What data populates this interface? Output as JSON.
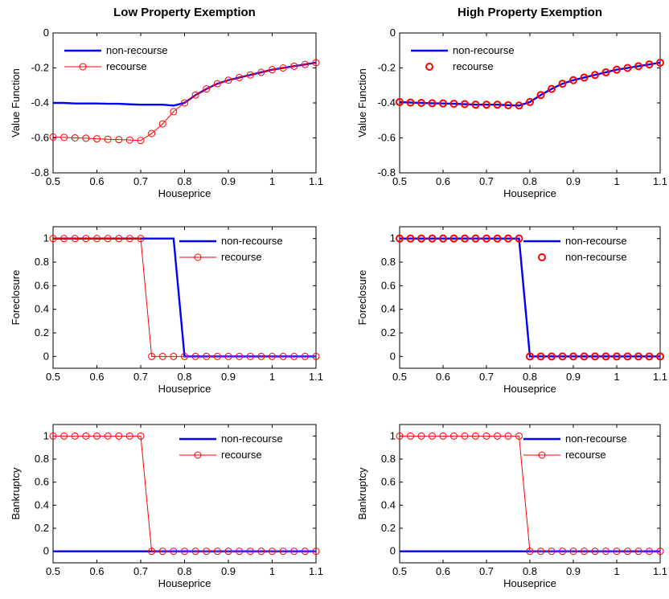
{
  "chart_data": [
    {
      "type": "line",
      "panel": "r1c1",
      "title": "Low Property Exemption",
      "xlabel": "Houseprice",
      "ylabel": "Value Function",
      "xlim": [
        0.5,
        1.1
      ],
      "ylim": [
        -0.8,
        0
      ],
      "xticks": [
        "0.5",
        "0.6",
        "0.7",
        "0.8",
        "0.9",
        "1",
        "1.1"
      ],
      "yticks": [
        "-0.8",
        "-0.6",
        "-0.4",
        "-0.2",
        "0"
      ],
      "legend_position": "top-left",
      "series": [
        {
          "name": "non-recourse",
          "color": "#0000ff",
          "marker": "none",
          "x": [
            0.5,
            0.525,
            0.55,
            0.575,
            0.6,
            0.625,
            0.65,
            0.675,
            0.7,
            0.725,
            0.75,
            0.775,
            0.8,
            0.825,
            0.85,
            0.875,
            0.9,
            0.925,
            0.95,
            0.975,
            1.0,
            1.025,
            1.05,
            1.075,
            1.1
          ],
          "values": [
            -0.4,
            -0.4,
            -0.403,
            -0.403,
            -0.403,
            -0.405,
            -0.405,
            -0.408,
            -0.41,
            -0.41,
            -0.41,
            -0.415,
            -0.4,
            -0.355,
            -0.32,
            -0.29,
            -0.27,
            -0.255,
            -0.24,
            -0.225,
            -0.21,
            -0.2,
            -0.19,
            -0.18,
            -0.17
          ]
        },
        {
          "name": "recourse",
          "color": "#ff0000",
          "marker": "circle",
          "x": [
            0.5,
            0.525,
            0.55,
            0.575,
            0.6,
            0.625,
            0.65,
            0.675,
            0.7,
            0.725,
            0.75,
            0.775,
            0.8,
            0.825,
            0.85,
            0.875,
            0.9,
            0.925,
            0.95,
            0.975,
            1.0,
            1.025,
            1.05,
            1.075,
            1.1
          ],
          "values": [
            -0.595,
            -0.597,
            -0.6,
            -0.602,
            -0.605,
            -0.608,
            -0.61,
            -0.612,
            -0.615,
            -0.575,
            -0.52,
            -0.45,
            -0.4,
            -0.355,
            -0.32,
            -0.29,
            -0.27,
            -0.255,
            -0.24,
            -0.225,
            -0.21,
            -0.2,
            -0.19,
            -0.18,
            -0.17
          ]
        }
      ]
    },
    {
      "type": "line",
      "panel": "r1c2",
      "title": "High Property Exemption",
      "xlabel": "Houseprice",
      "ylabel": "Value Function",
      "xlim": [
        0.5,
        1.1
      ],
      "ylim": [
        -0.8,
        0
      ],
      "xticks": [
        "0.5",
        "0.6",
        "0.7",
        "0.8",
        "0.9",
        "1",
        "1.1"
      ],
      "yticks": [
        "-0.8",
        "-0.6",
        "-0.4",
        "-0.2",
        "0"
      ],
      "legend_position": "top-left",
      "series": [
        {
          "name": "non-recourse",
          "color": "#0000ff",
          "marker": "none",
          "x": [
            0.5,
            0.525,
            0.55,
            0.575,
            0.6,
            0.625,
            0.65,
            0.675,
            0.7,
            0.725,
            0.75,
            0.775,
            0.8,
            0.825,
            0.85,
            0.875,
            0.9,
            0.925,
            0.95,
            0.975,
            1.0,
            1.025,
            1.05,
            1.075,
            1.1
          ],
          "values": [
            -0.395,
            -0.398,
            -0.4,
            -0.402,
            -0.403,
            -0.405,
            -0.407,
            -0.41,
            -0.41,
            -0.41,
            -0.413,
            -0.415,
            -0.395,
            -0.355,
            -0.32,
            -0.29,
            -0.27,
            -0.255,
            -0.24,
            -0.225,
            -0.21,
            -0.2,
            -0.19,
            -0.18,
            -0.17
          ]
        },
        {
          "name": "recourse",
          "color": "#ff0000",
          "marker": "circle-only",
          "x": [
            0.5,
            0.525,
            0.55,
            0.575,
            0.6,
            0.625,
            0.65,
            0.675,
            0.7,
            0.725,
            0.75,
            0.775,
            0.8,
            0.825,
            0.85,
            0.875,
            0.9,
            0.925,
            0.95,
            0.975,
            1.0,
            1.025,
            1.05,
            1.075,
            1.1
          ],
          "values": [
            -0.395,
            -0.398,
            -0.4,
            -0.402,
            -0.403,
            -0.405,
            -0.407,
            -0.41,
            -0.41,
            -0.41,
            -0.413,
            -0.415,
            -0.395,
            -0.355,
            -0.32,
            -0.29,
            -0.27,
            -0.255,
            -0.24,
            -0.225,
            -0.21,
            -0.2,
            -0.19,
            -0.18,
            -0.17
          ]
        }
      ]
    },
    {
      "type": "line",
      "panel": "r2c1",
      "title": "",
      "xlabel": "Houseprice",
      "ylabel": "Foreclosure",
      "xlim": [
        0.5,
        1.1
      ],
      "ylim": [
        -0.1,
        1.1
      ],
      "xticks": [
        "0.5",
        "0.6",
        "0.7",
        "0.8",
        "0.9",
        "1",
        "1.1"
      ],
      "yticks": [
        "0",
        "0.2",
        "0.4",
        "0.6",
        "0.8",
        "1"
      ],
      "legend_position": "top-right",
      "series": [
        {
          "name": "non-recourse",
          "color": "#0000ff",
          "marker": "none",
          "x": [
            0.5,
            0.525,
            0.55,
            0.575,
            0.6,
            0.625,
            0.65,
            0.675,
            0.7,
            0.725,
            0.75,
            0.775,
            0.8,
            0.825,
            0.85,
            0.875,
            0.9,
            0.925,
            0.95,
            0.975,
            1.0,
            1.025,
            1.05,
            1.075,
            1.1
          ],
          "values": [
            1,
            1,
            1,
            1,
            1,
            1,
            1,
            1,
            1,
            1,
            1,
            1,
            0,
            0,
            0,
            0,
            0,
            0,
            0,
            0,
            0,
            0,
            0,
            0,
            0
          ]
        },
        {
          "name": "recourse",
          "color": "#ff0000",
          "marker": "circle",
          "x": [
            0.5,
            0.525,
            0.55,
            0.575,
            0.6,
            0.625,
            0.65,
            0.675,
            0.7,
            0.725,
            0.75,
            0.775,
            0.8,
            0.825,
            0.85,
            0.875,
            0.9,
            0.925,
            0.95,
            0.975,
            1.0,
            1.025,
            1.05,
            1.075,
            1.1
          ],
          "values": [
            1,
            1,
            1,
            1,
            1,
            1,
            1,
            1,
            1,
            0,
            0,
            0,
            0,
            0,
            0,
            0,
            0,
            0,
            0,
            0,
            0,
            0,
            0,
            0,
            0
          ]
        }
      ]
    },
    {
      "type": "line",
      "panel": "r2c2",
      "title": "",
      "xlabel": "Houseprice",
      "ylabel": "Foreclosure",
      "xlim": [
        0.5,
        1.1
      ],
      "ylim": [
        -0.1,
        1.1
      ],
      "xticks": [
        "0.5",
        "0.6",
        "0.7",
        "0.8",
        "0.9",
        "1",
        "1.1"
      ],
      "yticks": [
        "0",
        "0.2",
        "0.4",
        "0.6",
        "0.8",
        "1"
      ],
      "legend_position": "top-right",
      "series": [
        {
          "name": "non-recourse",
          "color": "#0000ff",
          "marker": "none",
          "x": [
            0.5,
            0.525,
            0.55,
            0.575,
            0.6,
            0.625,
            0.65,
            0.675,
            0.7,
            0.725,
            0.75,
            0.775,
            0.8,
            0.825,
            0.85,
            0.875,
            0.9,
            0.925,
            0.95,
            0.975,
            1.0,
            1.025,
            1.05,
            1.075,
            1.1
          ],
          "values": [
            1,
            1,
            1,
            1,
            1,
            1,
            1,
            1,
            1,
            1,
            1,
            1,
            0,
            0,
            0,
            0,
            0,
            0,
            0,
            0,
            0,
            0,
            0,
            0,
            0
          ]
        },
        {
          "name": "non-recourse",
          "color": "#ff0000",
          "marker": "circle-only",
          "x": [
            0.5,
            0.525,
            0.55,
            0.575,
            0.6,
            0.625,
            0.65,
            0.675,
            0.7,
            0.725,
            0.75,
            0.775,
            0.8,
            0.825,
            0.85,
            0.875,
            0.9,
            0.925,
            0.95,
            0.975,
            1.0,
            1.025,
            1.05,
            1.075,
            1.1
          ],
          "values": [
            1,
            1,
            1,
            1,
            1,
            1,
            1,
            1,
            1,
            1,
            1,
            1,
            0,
            0,
            0,
            0,
            0,
            0,
            0,
            0,
            0,
            0,
            0,
            0,
            0
          ]
        }
      ]
    },
    {
      "type": "line",
      "panel": "r3c1",
      "title": "",
      "xlabel": "Houseprice",
      "ylabel": "Bankruptcy",
      "xlim": [
        0.5,
        1.1
      ],
      "ylim": [
        -0.1,
        1.1
      ],
      "xticks": [
        "0.5",
        "0.6",
        "0.7",
        "0.8",
        "0.9",
        "1",
        "1.1"
      ],
      "yticks": [
        "0",
        "0.2",
        "0.4",
        "0.6",
        "0.8",
        "1"
      ],
      "legend_position": "top-right",
      "series": [
        {
          "name": "non-recourse",
          "color": "#0000ff",
          "marker": "none",
          "x": [
            0.5,
            0.525,
            0.55,
            0.575,
            0.6,
            0.625,
            0.65,
            0.675,
            0.7,
            0.725,
            0.75,
            0.775,
            0.8,
            0.825,
            0.85,
            0.875,
            0.9,
            0.925,
            0.95,
            0.975,
            1.0,
            1.025,
            1.05,
            1.075,
            1.1
          ],
          "values": [
            0,
            0,
            0,
            0,
            0,
            0,
            0,
            0,
            0,
            0,
            0,
            0,
            0,
            0,
            0,
            0,
            0,
            0,
            0,
            0,
            0,
            0,
            0,
            0,
            0
          ]
        },
        {
          "name": "recourse",
          "color": "#ff0000",
          "marker": "circle",
          "x": [
            0.5,
            0.525,
            0.55,
            0.575,
            0.6,
            0.625,
            0.65,
            0.675,
            0.7,
            0.725,
            0.75,
            0.775,
            0.8,
            0.825,
            0.85,
            0.875,
            0.9,
            0.925,
            0.95,
            0.975,
            1.0,
            1.025,
            1.05,
            1.075,
            1.1
          ],
          "values": [
            1,
            1,
            1,
            1,
            1,
            1,
            1,
            1,
            1,
            0,
            0,
            0,
            0,
            0,
            0,
            0,
            0,
            0,
            0,
            0,
            0,
            0,
            0,
            0,
            0
          ]
        }
      ]
    },
    {
      "type": "line",
      "panel": "r3c2",
      "title": "",
      "xlabel": "Houseprice",
      "ylabel": "Bankruptcy",
      "xlim": [
        0.5,
        1.1
      ],
      "ylim": [
        -0.1,
        1.1
      ],
      "xticks": [
        "0.5",
        "0.6",
        "0.7",
        "0.8",
        "0.9",
        "1",
        "1.1"
      ],
      "yticks": [
        "0",
        "0.2",
        "0.4",
        "0.6",
        "0.8",
        "1"
      ],
      "legend_position": "top-right",
      "series": [
        {
          "name": "non-recourse",
          "color": "#0000ff",
          "marker": "none",
          "x": [
            0.5,
            0.525,
            0.55,
            0.575,
            0.6,
            0.625,
            0.65,
            0.675,
            0.7,
            0.725,
            0.75,
            0.775,
            0.8,
            0.825,
            0.85,
            0.875,
            0.9,
            0.925,
            0.95,
            0.975,
            1.0,
            1.025,
            1.05,
            1.075,
            1.1
          ],
          "values": [
            0,
            0,
            0,
            0,
            0,
            0,
            0,
            0,
            0,
            0,
            0,
            0,
            0,
            0,
            0,
            0,
            0,
            0,
            0,
            0,
            0,
            0,
            0,
            0,
            0
          ]
        },
        {
          "name": "recourse",
          "color": "#ff0000",
          "marker": "circle",
          "x": [
            0.5,
            0.525,
            0.55,
            0.575,
            0.6,
            0.625,
            0.65,
            0.675,
            0.7,
            0.725,
            0.75,
            0.775,
            0.8,
            0.825,
            0.85,
            0.875,
            0.9,
            0.925,
            0.95,
            0.975,
            1.0,
            1.025,
            1.05,
            1.075,
            1.1
          ],
          "values": [
            1,
            1,
            1,
            1,
            1,
            1,
            1,
            1,
            1,
            1,
            1,
            1,
            0,
            0,
            0,
            0,
            0,
            0,
            0,
            0,
            0,
            0,
            0,
            0,
            0
          ]
        }
      ]
    }
  ]
}
